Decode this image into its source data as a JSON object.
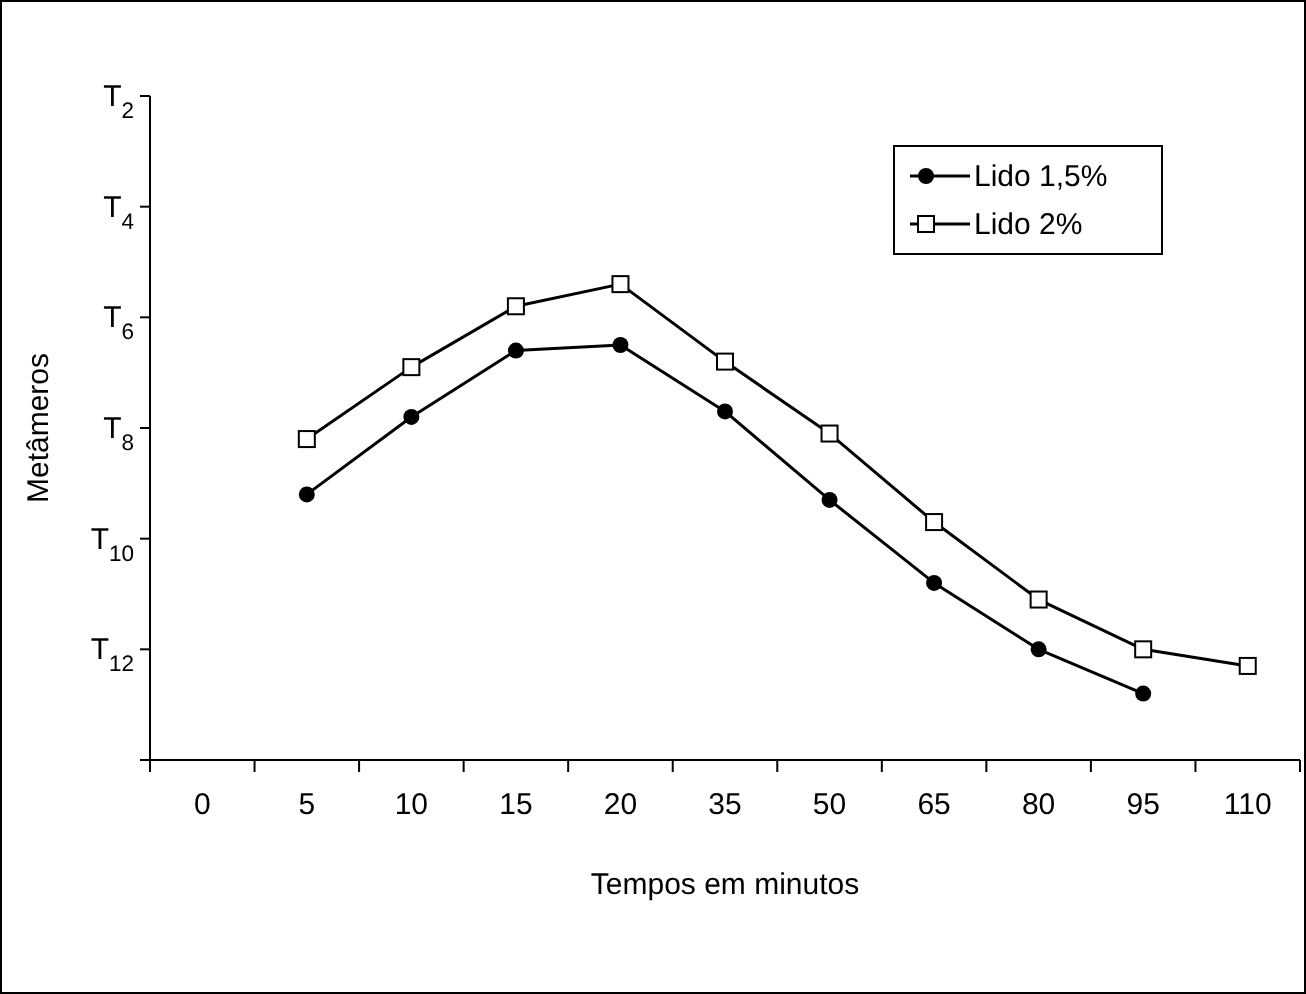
{
  "chart_data": {
    "type": "line",
    "xlabel": "Tempos em minutos",
    "ylabel": "Metâmeros",
    "categories": [
      "0",
      "5",
      "10",
      "15",
      "20",
      "35",
      "50",
      "65",
      "80",
      "95",
      "110"
    ],
    "ylim": [
      14,
      2
    ],
    "yticks": [
      {
        "value": 2,
        "label": "T$_{2}$"
      },
      {
        "value": 4,
        "label": "T$_{4}$"
      },
      {
        "value": 6,
        "label": "T$_{6}$"
      },
      {
        "value": 8,
        "label": "T$_{8}$"
      },
      {
        "value": 10,
        "label": "T$_{10}$"
      },
      {
        "value": 12,
        "label": "T$_{12}$"
      },
      {
        "value": 14,
        "label": null
      }
    ],
    "grid": false,
    "legend": "top right",
    "line_style": "solid",
    "series": [
      {
        "name": "Lido 1,5%",
        "color": "#000000",
        "marker": "circle",
        "values": [
          null,
          9.2,
          7.8,
          6.6,
          6.5,
          7.7,
          9.3,
          10.8,
          12.0,
          12.8,
          null
        ]
      },
      {
        "name": "Lido 2%",
        "color": "#000000",
        "marker": "square",
        "values": [
          null,
          8.2,
          6.9,
          5.8,
          5.4,
          6.8,
          8.1,
          9.7,
          11.1,
          12.0,
          12.3
        ]
      }
    ]
  }
}
